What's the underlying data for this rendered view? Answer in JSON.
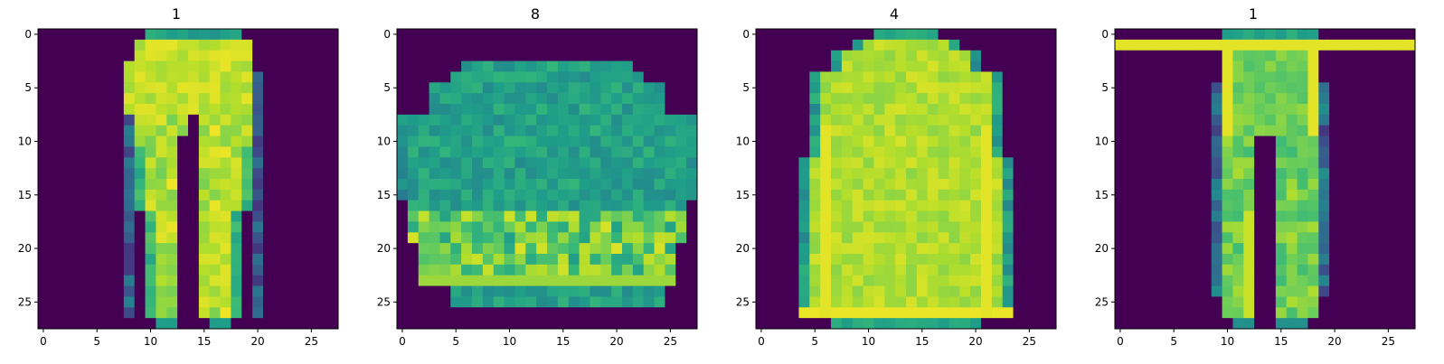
{
  "chart_data": [
    {
      "type": "heatmap",
      "title": "1",
      "item": "trouser",
      "rows": 28,
      "cols": 28,
      "colormap": "viridis",
      "xlim": [
        -0.5,
        27.5
      ],
      "ylim": [
        27.5,
        -0.5
      ],
      "xticks": [
        "0",
        "5",
        "10",
        "15",
        "20",
        "25"
      ],
      "yticks": [
        "0",
        "5",
        "10",
        "15",
        "20",
        "25"
      ]
    },
    {
      "type": "heatmap",
      "title": "8",
      "item": "bag",
      "rows": 28,
      "cols": 28,
      "colormap": "viridis",
      "xlim": [
        -0.5,
        27.5
      ],
      "ylim": [
        27.5,
        -0.5
      ],
      "xticks": [
        "0",
        "5",
        "10",
        "15",
        "20",
        "25"
      ],
      "yticks": [
        "0",
        "5",
        "10",
        "15",
        "20",
        "25"
      ]
    },
    {
      "type": "heatmap",
      "title": "4",
      "item": "coat",
      "rows": 28,
      "cols": 28,
      "colormap": "viridis",
      "xlim": [
        -0.5,
        27.5
      ],
      "ylim": [
        27.5,
        -0.5
      ],
      "xticks": [
        "0",
        "5",
        "10",
        "15",
        "20",
        "25"
      ],
      "yticks": [
        "0",
        "5",
        "10",
        "15",
        "20",
        "25"
      ]
    },
    {
      "type": "heatmap",
      "title": "1",
      "item": "trouser",
      "rows": 28,
      "cols": 28,
      "colormap": "viridis",
      "xlim": [
        -0.5,
        27.5
      ],
      "ylim": [
        27.5,
        -0.5
      ],
      "xticks": [
        "0",
        "5",
        "10",
        "15",
        "20",
        "25"
      ],
      "yticks": [
        "0",
        "5",
        "10",
        "15",
        "20",
        "25"
      ]
    }
  ]
}
